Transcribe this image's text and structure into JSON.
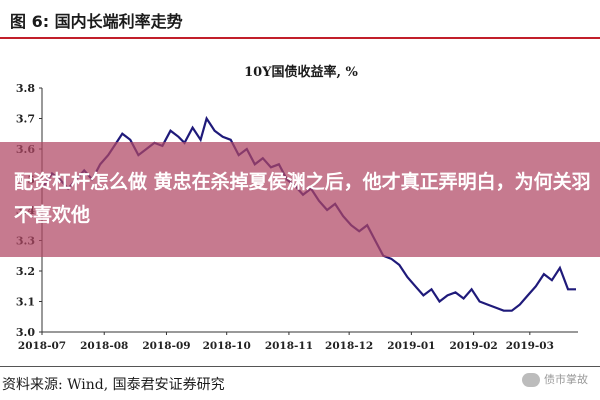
{
  "figure": {
    "title": "图 6:  国内长端利率走势",
    "source": "资料来源:  Wind,  国泰君安证券研究",
    "watermark": "债市掌故"
  },
  "overlay": {
    "text": "配资杠杆怎么做 黄忠在杀掉夏侯渊之后，他才真正弄明白，为何关羽不喜欢他"
  },
  "colors": {
    "line": "#1f1a7a",
    "accent": "#c21f2a",
    "overlay": "#b04664"
  },
  "chart_data": {
    "type": "line",
    "title": "10Y国债收益率, %",
    "xlabel": "",
    "ylabel": "",
    "ylim": [
      3.0,
      3.8
    ],
    "yticks": [
      "3.0",
      "3.1",
      "3.2",
      "3.3",
      "3.4",
      "3.5",
      "3.6",
      "3.7",
      "3.8"
    ],
    "xticks": [
      "2018-07",
      "2018-08",
      "2018-09",
      "2018-10",
      "2018-11",
      "2018-12",
      "2019-01",
      "2019-02",
      "2019-03"
    ],
    "grid": false,
    "legend": "none",
    "series": [
      {
        "name": "",
        "x": [
          "2018-07-02",
          "2018-07-06",
          "2018-07-10",
          "2018-07-14",
          "2018-07-18",
          "2018-07-22",
          "2018-07-26",
          "2018-07-30",
          "2018-08-03",
          "2018-08-07",
          "2018-08-10",
          "2018-08-14",
          "2018-08-18",
          "2018-08-22",
          "2018-08-26",
          "2018-08-30",
          "2018-09-03",
          "2018-09-07",
          "2018-09-10",
          "2018-09-14",
          "2018-09-18",
          "2018-09-21",
          "2018-09-25",
          "2018-09-29",
          "2018-10-03",
          "2018-10-07",
          "2018-10-11",
          "2018-10-15",
          "2018-10-19",
          "2018-10-23",
          "2018-10-27",
          "2018-10-31",
          "2018-11-04",
          "2018-11-08",
          "2018-11-12",
          "2018-11-16",
          "2018-11-20",
          "2018-11-24",
          "2018-11-28",
          "2018-12-02",
          "2018-12-06",
          "2018-12-10",
          "2018-12-14",
          "2018-12-18",
          "2018-12-22",
          "2018-12-26",
          "2018-12-30",
          "2019-01-03",
          "2019-01-07",
          "2019-01-11",
          "2019-01-15",
          "2019-01-19",
          "2019-01-23",
          "2019-01-27",
          "2019-01-31",
          "2019-02-04",
          "2019-02-08",
          "2019-02-12",
          "2019-02-16",
          "2019-02-20",
          "2019-02-24",
          "2019-02-28",
          "2019-03-04",
          "2019-03-08",
          "2019-03-12",
          "2019-03-16",
          "2019-03-20",
          "2019-03-24"
        ],
        "y": [
          3.48,
          3.52,
          3.5,
          3.47,
          3.5,
          3.53,
          3.5,
          3.55,
          3.58,
          3.62,
          3.65,
          3.63,
          3.58,
          3.6,
          3.62,
          3.61,
          3.66,
          3.64,
          3.62,
          3.67,
          3.63,
          3.7,
          3.66,
          3.64,
          3.63,
          3.58,
          3.6,
          3.55,
          3.57,
          3.54,
          3.55,
          3.5,
          3.48,
          3.45,
          3.47,
          3.43,
          3.4,
          3.42,
          3.38,
          3.35,
          3.33,
          3.35,
          3.3,
          3.25,
          3.24,
          3.22,
          3.18,
          3.15,
          3.12,
          3.14,
          3.1,
          3.12,
          3.13,
          3.11,
          3.14,
          3.1,
          3.09,
          3.08,
          3.07,
          3.07,
          3.09,
          3.12,
          3.15,
          3.19,
          3.17,
          3.21,
          3.14,
          3.14
        ]
      }
    ]
  }
}
